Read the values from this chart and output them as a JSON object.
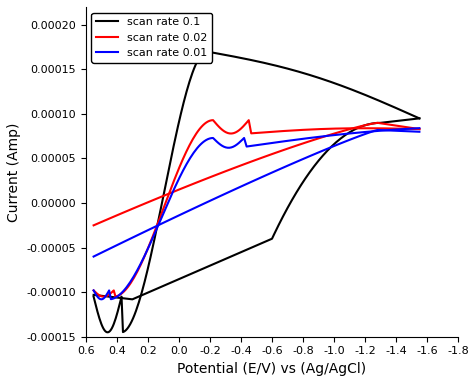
{
  "title": "",
  "xlabel": "Potential (E/V) vs (Ag/AgCl)",
  "ylabel": "Current (Amp)",
  "xlim": [
    0.6,
    -1.8
  ],
  "ylim": [
    -0.00015,
    0.00022
  ],
  "xticks": [
    0.6,
    0.4,
    0.2,
    0.0,
    -0.2,
    -0.4,
    -0.6,
    -0.8,
    -1.0,
    -1.2,
    -1.4,
    -1.6,
    -1.8
  ],
  "yticks": [
    -0.00015,
    -0.0001,
    -5e-05,
    0.0,
    5e-05,
    0.0001,
    0.00015,
    0.0002
  ],
  "legend_labels": [
    "scan rate 0.1",
    "scan rate 0.02",
    "scan rate 0.01"
  ],
  "line_colors": [
    "black",
    "red",
    "blue"
  ],
  "background_color": "#ffffff",
  "grid": false
}
